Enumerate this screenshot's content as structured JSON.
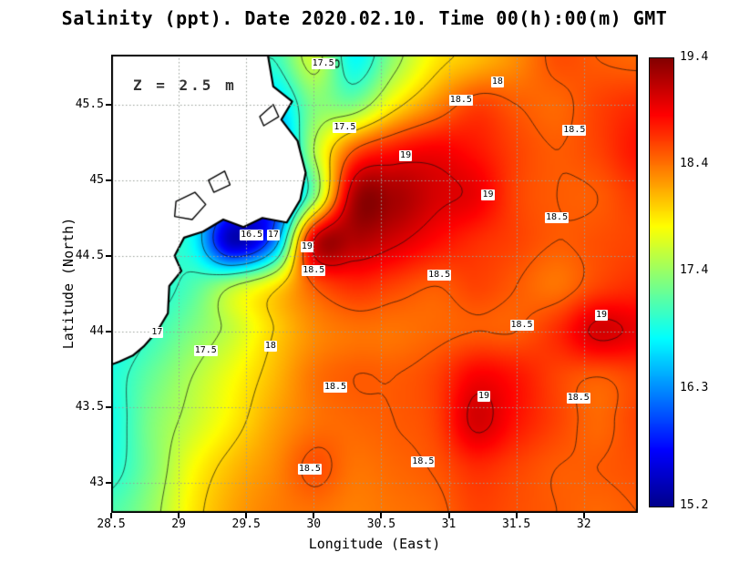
{
  "title": "Salinity (ppt). Date 2020.02.10. Time 00(h):00(m) GMT",
  "annotation": "Z = 2.5 m",
  "axes": {
    "xlabel": "Longitude (East)",
    "ylabel": "Latitude (North)",
    "x_ticks": [
      {
        "label": "28.5",
        "value": 28.5
      },
      {
        "label": "29",
        "value": 29
      },
      {
        "label": "29.5",
        "value": 29.5
      },
      {
        "label": "30",
        "value": 30
      },
      {
        "label": "30.5",
        "value": 30.5
      },
      {
        "label": "31",
        "value": 31
      },
      {
        "label": "31.5",
        "value": 31.5
      },
      {
        "label": "32",
        "value": 32
      }
    ],
    "y_ticks": [
      {
        "label": "43",
        "value": 43
      },
      {
        "label": "43.5",
        "value": 43.5
      },
      {
        "label": "44",
        "value": 44
      },
      {
        "label": "44.5",
        "value": 44.5
      },
      {
        "label": "45",
        "value": 45
      },
      {
        "label": "45.5",
        "value": 45.5
      }
    ]
  },
  "colorbar": {
    "min": 15.2,
    "max": 19.4,
    "ticks": [
      {
        "label": "19.4",
        "value": 19.4
      },
      {
        "label": "18.4",
        "value": 18.4
      },
      {
        "label": "17.4",
        "value": 17.4
      },
      {
        "label": "16.3",
        "value": 16.3
      },
      {
        "label": "15.2",
        "value": 15.2
      }
    ]
  },
  "chart_data": {
    "type": "heatmap",
    "title": "Salinity (ppt). Date 2020.02.10. Time 00(h):00(m) GMT",
    "depth_annotation": "Z = 2.5 m",
    "units": "ppt",
    "x_range": [
      28.5,
      32.4
    ],
    "y_range": [
      42.8,
      45.83
    ],
    "lon": [
      28.5,
      28.8,
      29.1,
      29.4,
      29.7,
      30.0,
      30.3,
      30.6,
      30.9,
      31.2,
      31.5,
      31.8,
      32.1,
      32.4
    ],
    "lat": [
      42.8,
      43.1,
      43.4,
      43.7,
      44.0,
      44.3,
      44.6,
      44.9,
      45.2,
      45.5,
      45.8
    ],
    "values": [
      [
        17.1,
        17.4,
        17.9,
        18.2,
        18.35,
        18.4,
        18.35,
        18.4,
        18.45,
        18.6,
        18.55,
        18.5,
        18.45,
        18.5
      ],
      [
        16.9,
        17.3,
        17.8,
        18.1,
        18.3,
        18.55,
        18.4,
        18.45,
        18.52,
        18.7,
        18.6,
        18.5,
        18.5,
        18.55
      ],
      [
        16.85,
        17.3,
        17.6,
        17.9,
        18.2,
        18.4,
        18.45,
        18.5,
        18.6,
        19.05,
        18.8,
        18.6,
        18.45,
        18.6
      ],
      [
        16.9,
        17.2,
        17.5,
        17.8,
        18.1,
        18.4,
        18.5,
        18.5,
        18.6,
        18.9,
        18.8,
        18.6,
        18.5,
        18.6
      ],
      [
        16.8,
        17.0,
        17.3,
        17.6,
        18.0,
        18.3,
        18.4,
        18.4,
        18.45,
        18.5,
        18.5,
        18.7,
        19.05,
        18.95
      ],
      [
        17.0,
        16.9,
        17.1,
        17.5,
        17.9,
        18.5,
        18.7,
        18.6,
        18.5,
        18.6,
        18.5,
        18.4,
        18.6,
        18.7
      ],
      [
        17.2,
        17.0,
        16.8,
        15.4,
        16.2,
        19.0,
        19.2,
        19.05,
        18.85,
        18.7,
        18.6,
        18.5,
        18.55,
        18.6
      ],
      [
        17.2,
        17.1,
        16.9,
        16.5,
        15.9,
        17.3,
        19.2,
        19.25,
        19.05,
        18.95,
        18.6,
        18.5,
        18.5,
        18.65
      ],
      [
        17.5,
        17.5,
        17.4,
        17.2,
        16.2,
        17.5,
        18.5,
        18.8,
        18.9,
        18.8,
        18.6,
        18.5,
        18.6,
        18.8
      ],
      [
        17.5,
        17.5,
        17.5,
        17.4,
        16.6,
        17.3,
        17.3,
        17.9,
        18.3,
        18.6,
        18.5,
        18.45,
        18.6,
        18.7
      ],
      [
        17.5,
        17.5,
        17.5,
        17.3,
        17.0,
        17.6,
        16.8,
        17.4,
        17.9,
        18.1,
        18.3,
        18.55,
        18.5,
        18.45
      ]
    ],
    "contour_levels": [
      16,
      16.5,
      17,
      17.5,
      18,
      18.5,
      19
    ],
    "contour_labels": [
      {
        "text": "17.5",
        "lon": 30.07,
        "lat": 45.77
      },
      {
        "text": "18",
        "lon": 31.36,
        "lat": 45.65
      },
      {
        "text": "18.5",
        "lon": 31.09,
        "lat": 45.53
      },
      {
        "text": "18.5",
        "lon": 31.93,
        "lat": 45.33
      },
      {
        "text": "17.5",
        "lon": 30.23,
        "lat": 45.35
      },
      {
        "text": "19",
        "lon": 30.68,
        "lat": 45.16
      },
      {
        "text": "19",
        "lon": 31.29,
        "lat": 44.9
      },
      {
        "text": "18.5",
        "lon": 31.8,
        "lat": 44.75
      },
      {
        "text": "16.5",
        "lon": 29.54,
        "lat": 44.64
      },
      {
        "text": "17",
        "lon": 29.7,
        "lat": 44.64
      },
      {
        "text": "19",
        "lon": 29.95,
        "lat": 44.56
      },
      {
        "text": "18.5",
        "lon": 30.0,
        "lat": 44.4
      },
      {
        "text": "18.5",
        "lon": 30.93,
        "lat": 44.37
      },
      {
        "text": "19",
        "lon": 32.13,
        "lat": 44.11
      },
      {
        "text": "18.5",
        "lon": 31.54,
        "lat": 44.04
      },
      {
        "text": "17",
        "lon": 28.84,
        "lat": 43.99
      },
      {
        "text": "17.5",
        "lon": 29.2,
        "lat": 43.87
      },
      {
        "text": "18",
        "lon": 29.68,
        "lat": 43.9
      },
      {
        "text": "18.5",
        "lon": 30.16,
        "lat": 43.63
      },
      {
        "text": "19",
        "lon": 31.26,
        "lat": 43.57
      },
      {
        "text": "18.5",
        "lon": 31.96,
        "lat": 43.56
      },
      {
        "text": "18.5",
        "lon": 29.97,
        "lat": 43.09
      },
      {
        "text": "18.5",
        "lon": 30.81,
        "lat": 43.14
      }
    ],
    "land_polygon": [
      [
        29.66,
        45.83
      ],
      [
        29.7,
        45.62
      ],
      [
        29.84,
        45.52
      ],
      [
        29.76,
        45.4
      ],
      [
        29.88,
        45.26
      ],
      [
        29.94,
        45.05
      ],
      [
        29.9,
        44.87
      ],
      [
        29.8,
        44.72
      ],
      [
        29.62,
        44.75
      ],
      [
        29.48,
        44.69
      ],
      [
        29.33,
        44.74
      ],
      [
        29.18,
        44.66
      ],
      [
        29.04,
        44.62
      ],
      [
        28.97,
        44.5
      ],
      [
        29.02,
        44.4
      ],
      [
        28.93,
        44.3
      ],
      [
        28.92,
        44.12
      ],
      [
        28.84,
        44.0
      ],
      [
        28.74,
        43.9
      ],
      [
        28.66,
        43.84
      ],
      [
        28.56,
        43.8
      ],
      [
        28.5,
        43.78
      ],
      [
        28.5,
        45.83
      ]
    ],
    "lakes": [
      [
        [
          28.98,
          44.86
        ],
        [
          29.12,
          44.92
        ],
        [
          29.2,
          44.84
        ],
        [
          29.1,
          44.74
        ],
        [
          28.97,
          44.76
        ]
      ],
      [
        [
          29.22,
          45.0
        ],
        [
          29.34,
          45.06
        ],
        [
          29.38,
          44.97
        ],
        [
          29.26,
          44.92
        ]
      ],
      [
        [
          29.6,
          45.42
        ],
        [
          29.7,
          45.5
        ],
        [
          29.74,
          45.42
        ],
        [
          29.63,
          45.36
        ]
      ]
    ],
    "islands": [
      {
        "lon": 30.17,
        "lat": 45.77
      }
    ],
    "colormap": [
      {
        "t": 0,
        "c": [
          0,
          0,
          140
        ]
      },
      {
        "t": 0.125,
        "c": [
          0,
          0,
          255
        ]
      },
      {
        "t": 0.375,
        "c": [
          0,
          255,
          255
        ]
      },
      {
        "t": 0.625,
        "c": [
          255,
          255,
          0
        ]
      },
      {
        "t": 0.875,
        "c": [
          255,
          0,
          0
        ]
      },
      {
        "t": 1,
        "c": [
          132,
          0,
          0
        ]
      }
    ]
  }
}
